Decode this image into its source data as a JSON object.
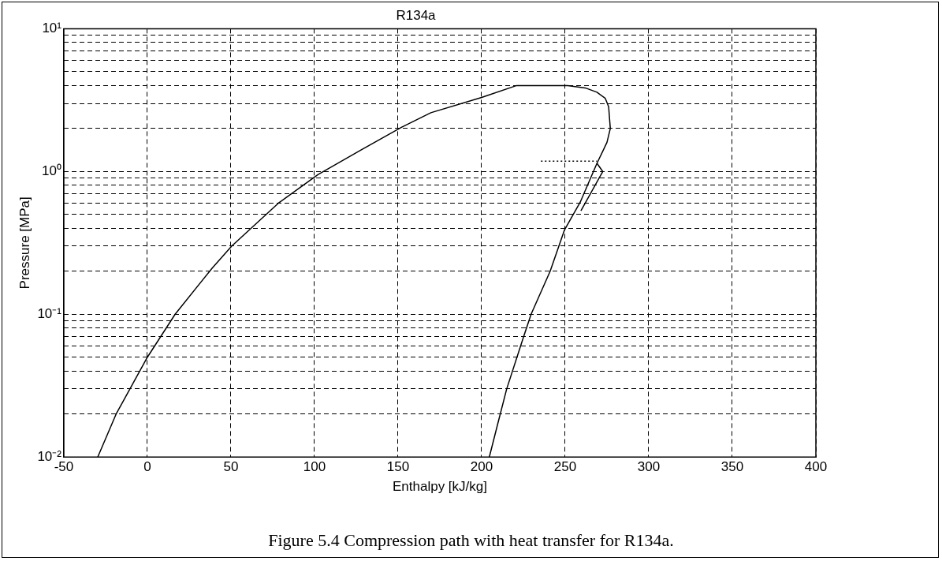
{
  "chart_data": {
    "type": "line",
    "title": "R134a",
    "xlabel": "Enthalpy [kJ/kg]",
    "ylabel": "Pressure [MPa]",
    "annotations": [
      "Figure 5.4  Compression path with heat transfer for R134a."
    ],
    "xlim": [
      -50,
      400
    ],
    "xticks": [
      -50,
      0,
      50,
      100,
      150,
      200,
      250,
      300,
      350,
      400
    ],
    "ylim": [
      0.01,
      10
    ],
    "yticks": [
      {
        "value": 0.01,
        "label": "10⁻²"
      },
      {
        "value": 0.02,
        "label": null
      },
      {
        "value": 0.03,
        "label": null
      },
      {
        "value": 0.04,
        "label": null
      },
      {
        "value": 0.05,
        "label": null
      },
      {
        "value": 0.06,
        "label": null
      },
      {
        "value": 0.07,
        "label": null
      },
      {
        "value": 0.08,
        "label": null
      },
      {
        "value": 0.09,
        "label": null
      },
      {
        "value": 0.1,
        "label": "10⁻¹"
      },
      {
        "value": 0.2,
        "label": null
      },
      {
        "value": 0.3,
        "label": null
      },
      {
        "value": 0.4,
        "label": null
      },
      {
        "value": 0.5,
        "label": null
      },
      {
        "value": 0.6,
        "label": null
      },
      {
        "value": 0.7,
        "label": null
      },
      {
        "value": 0.8,
        "label": null
      },
      {
        "value": 0.9,
        "label": null
      },
      {
        "value": 1,
        "label": "10⁰"
      },
      {
        "value": 2,
        "label": null
      },
      {
        "value": 3,
        "label": null
      },
      {
        "value": 4,
        "label": null
      },
      {
        "value": 5,
        "label": null
      },
      {
        "value": 6,
        "label": null
      },
      {
        "value": 7,
        "label": null
      },
      {
        "value": 8,
        "label": null
      },
      {
        "value": 9,
        "label": null
      },
      {
        "value": 10,
        "label": "10¹"
      }
    ],
    "log": "y",
    "grid": true,
    "legend": false,
    "marker": "none",
    "series": [
      {
        "color": "#000000",
        "line_style": "solid",
        "x": [
          -29.7,
          -18.7,
          0,
          16.6,
          38.7,
          50.4,
          78.4,
          102,
          128,
          152,
          169.6,
          200,
          221,
          235,
          251.5,
          262,
          269,
          274,
          276,
          277,
          275,
          269,
          259,
          249.6,
          241,
          229.6,
          225,
          215,
          209.6,
          204.6
        ],
        "values": [
          0.01,
          0.02,
          0.05,
          0.1,
          0.21,
          0.3,
          0.6,
          0.95,
          1.42,
          2.04,
          2.58,
          3.3,
          4,
          4,
          4,
          3.85,
          3.59,
          3.25,
          2.84,
          2,
          1.6,
          1.14,
          0.61,
          0.39,
          0.2,
          0.1,
          0.069,
          0.03,
          0.017,
          0.01
        ]
      },
      {
        "color": "#000000",
        "line_style": "solid",
        "x": [
          259.4,
          272.5,
          269
        ],
        "values": [
          0.53,
          1,
          1.14
        ]
      },
      {
        "color": "#000000",
        "line_style": "dotted",
        "x": [
          235.5,
          269
        ],
        "values": [
          1.18,
          1.18
        ]
      }
    ]
  }
}
